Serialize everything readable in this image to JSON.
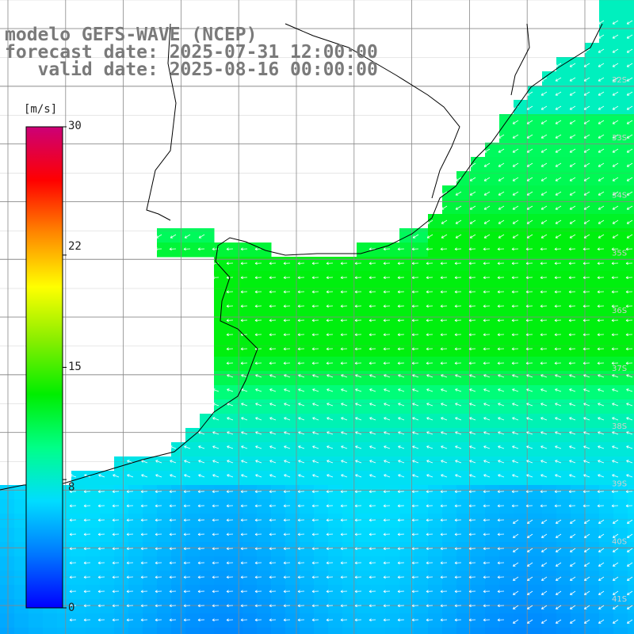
{
  "title": {
    "line1": "modelo GEFS-WAVE (NCEP)",
    "line2": "forecast date: 2025-07-31 12:00:00",
    "line3": "   valid date: 2025-08-16 00:00:00"
  },
  "colorbar": {
    "unit": "[m/s]",
    "min": 0,
    "max": 30,
    "ticks": [
      "30",
      "22",
      "15",
      "8",
      "0"
    ],
    "tick_values": [
      30,
      22,
      15,
      8,
      0
    ],
    "stops": [
      "#0000ff",
      "#0077ff",
      "#00ddff",
      "#00ff88",
      "#00ee00",
      "#88ee00",
      "#ffff00",
      "#ff8800",
      "#ff0000",
      "#cc0077"
    ]
  },
  "map": {
    "lat_labels": [
      "32S",
      "33S",
      "34S",
      "35S",
      "36S",
      "37S",
      "38S",
      "39S",
      "40S",
      "41S"
    ],
    "land_color": "#ffffff",
    "grid_color": "#888888",
    "arrow_color": "#ffffff"
  }
}
